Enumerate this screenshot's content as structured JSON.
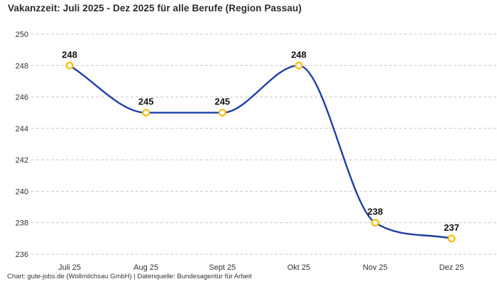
{
  "header": {
    "title": "Vakanzzeit: Juli 2025 - Dez 2025 für alle Berufe (Region Passau)"
  },
  "footer": {
    "credit": "Chart: gute-jobs.de (Wollmilchsau GmbH) | Datenquelle: Bundesagentur für Arbeit"
  },
  "chart_data": {
    "type": "line",
    "title": "Vakanzzeit: Juli 2025 - Dez 2025 für alle Berufe (Region Passau)",
    "categories": [
      "Juli 25",
      "Aug 25",
      "Sept 25",
      "Okt 25",
      "Nov 25",
      "Dez 25"
    ],
    "series": [
      {
        "name": "Vakanzzeit",
        "values": [
          248,
          245,
          245,
          248,
          238,
          237
        ]
      }
    ],
    "data_labels": [
      "248",
      "245",
      "245",
      "248",
      "238",
      "237"
    ],
    "xlabel": "",
    "ylabel": "",
    "ylim": [
      236,
      250
    ],
    "yticks": [
      236,
      238,
      240,
      242,
      244,
      246,
      248,
      250
    ],
    "grid": "horizontal dashed",
    "legend": "none",
    "line_shape": "smooth monotone spline",
    "colors": {
      "line": "#1e3ea6",
      "marker_stroke": "#f5c11e",
      "marker_fill": "#ffffff",
      "grid": "#c8c8c8",
      "tick_text": "#333333",
      "data_label": "#111111"
    }
  }
}
